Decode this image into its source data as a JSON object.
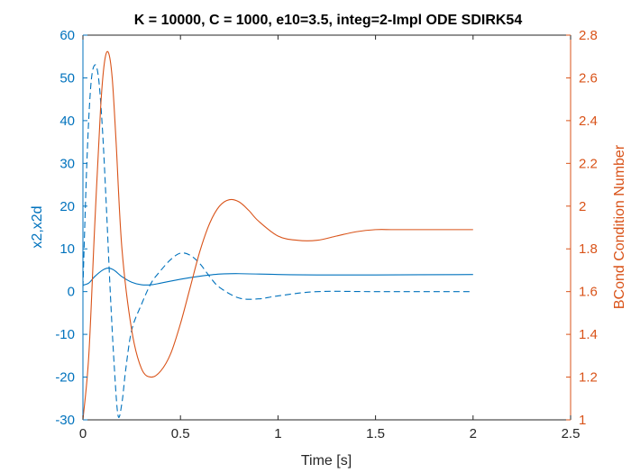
{
  "chart_data": {
    "type": "line",
    "title": "K = 10000, C = 1000, e10=3.5, integ=2-Impl ODE SDIRK54",
    "xlabel": "Time [s]",
    "ylabel_left": "x2,x2d",
    "ylabel_right": "BCond Condition Number",
    "xlim": [
      0,
      2.5
    ],
    "ylim_left": [
      -30,
      60
    ],
    "ylim_right": [
      1,
      2.8
    ],
    "xticks": [
      "0",
      "0.5",
      "1",
      "1.5",
      "2",
      "2.5"
    ],
    "yticks_left": [
      "-30",
      "-20",
      "-10",
      "0",
      "10",
      "20",
      "30",
      "40",
      "50",
      "60"
    ],
    "yticks_right": [
      "1",
      "1.2",
      "1.4",
      "1.6",
      "1.8",
      "2",
      "2.2",
      "2.4",
      "2.6",
      "2.8"
    ],
    "grid": false,
    "colors": {
      "left": "#0072BD",
      "right": "#D95319",
      "axes": "#262626"
    },
    "series": [
      {
        "axis": "left",
        "style": "solid",
        "color": "#0072BD",
        "x": [
          0,
          0.03,
          0.06,
          0.1,
          0.13,
          0.16,
          0.2,
          0.25,
          0.3,
          0.35,
          0.4,
          0.5,
          0.6,
          0.7,
          0.8,
          1.0,
          1.2,
          1.5,
          2.0
        ],
        "y": [
          1.5,
          2.0,
          3.5,
          5.0,
          5.5,
          5.0,
          3.5,
          2.2,
          1.6,
          1.6,
          2.0,
          2.9,
          3.6,
          4.1,
          4.2,
          4.0,
          3.9,
          3.9,
          4.0
        ]
      },
      {
        "axis": "left",
        "style": "dashed",
        "color": "#0072BD",
        "x": [
          0,
          0.02,
          0.04,
          0.06,
          0.08,
          0.1,
          0.12,
          0.14,
          0.16,
          0.18,
          0.2,
          0.22,
          0.25,
          0.3,
          0.35,
          0.4,
          0.45,
          0.5,
          0.55,
          0.6,
          0.65,
          0.7,
          0.8,
          0.9,
          1.0,
          1.2,
          1.5,
          2.0
        ],
        "y": [
          1,
          30,
          48,
          53,
          50,
          38,
          20,
          0,
          -17,
          -29,
          -26,
          -18,
          -9,
          -3,
          2,
          5,
          7.5,
          9,
          8.5,
          6.5,
          3.5,
          1,
          -1.5,
          -1.7,
          -1,
          0,
          0,
          0
        ]
      },
      {
        "axis": "right",
        "style": "solid",
        "color": "#D95319",
        "x": [
          0,
          0.03,
          0.06,
          0.09,
          0.11,
          0.13,
          0.15,
          0.17,
          0.2,
          0.25,
          0.3,
          0.35,
          0.4,
          0.45,
          0.5,
          0.55,
          0.6,
          0.65,
          0.7,
          0.75,
          0.8,
          0.85,
          0.9,
          1.0,
          1.1,
          1.2,
          1.3,
          1.4,
          1.5,
          1.6,
          1.8,
          2.0
        ],
        "y": [
          1.0,
          1.3,
          1.9,
          2.45,
          2.67,
          2.72,
          2.6,
          2.3,
          1.8,
          1.42,
          1.24,
          1.2,
          1.23,
          1.31,
          1.45,
          1.62,
          1.79,
          1.92,
          2.0,
          2.03,
          2.02,
          1.98,
          1.93,
          1.86,
          1.84,
          1.84,
          1.86,
          1.88,
          1.89,
          1.89,
          1.89,
          1.89
        ]
      }
    ]
  }
}
